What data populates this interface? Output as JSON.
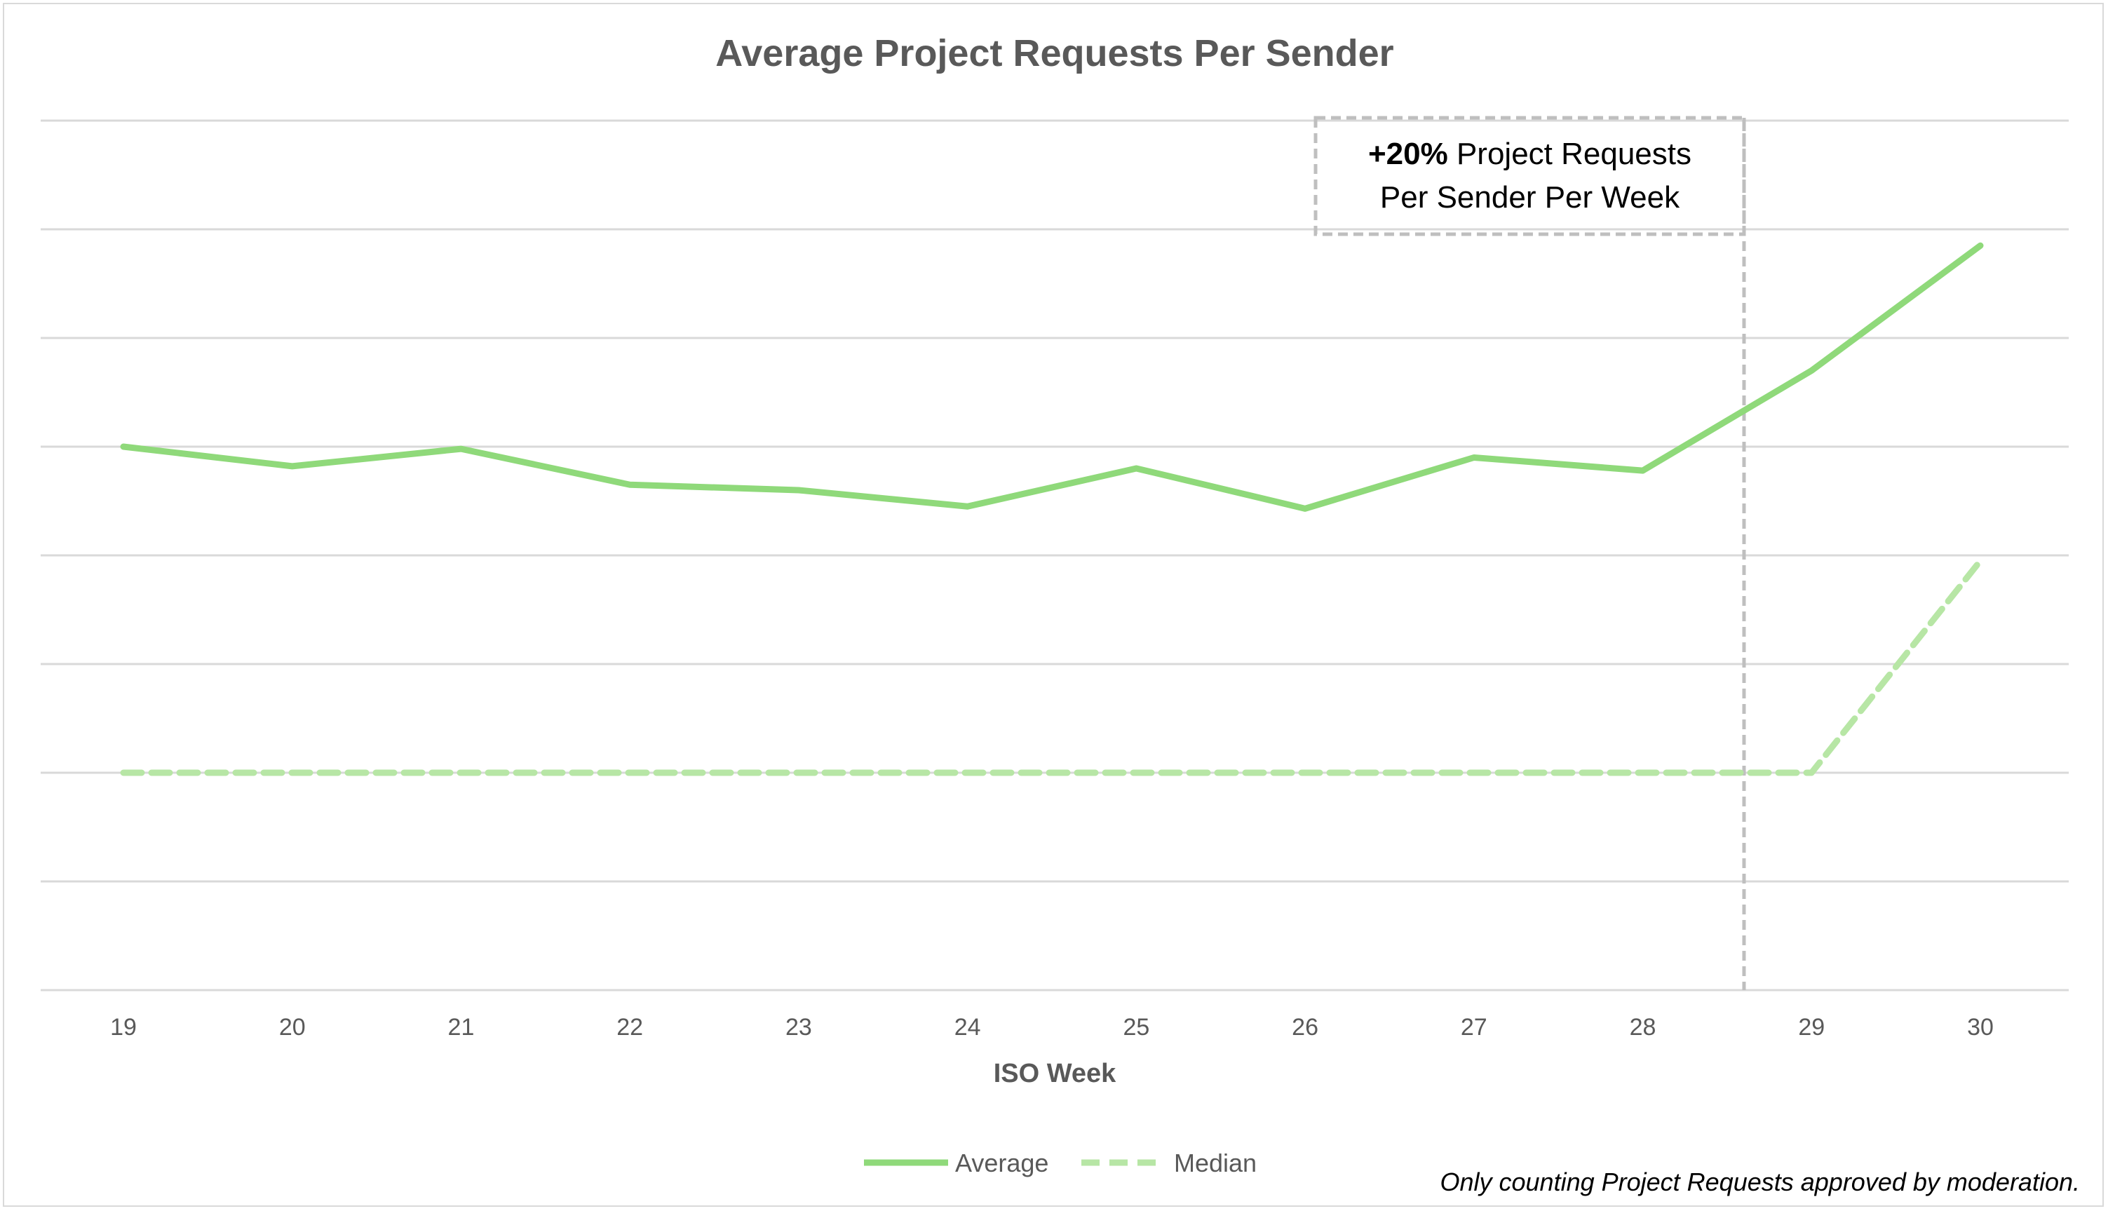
{
  "chart_data": {
    "type": "line",
    "title": "Average Project Requests Per Sender",
    "xlabel": "ISO Week",
    "ylabel": "",
    "categories": [
      "19",
      "20",
      "21",
      "22",
      "23",
      "24",
      "25",
      "26",
      "27",
      "28",
      "29",
      "30"
    ],
    "series": [
      {
        "name": "Average",
        "style": "solid",
        "color": "#8fd97a",
        "values": [
          5.0,
          4.82,
          4.98,
          4.65,
          4.6,
          4.45,
          4.8,
          4.43,
          4.9,
          4.78,
          5.7,
          6.85
        ]
      },
      {
        "name": "Median",
        "style": "dashed",
        "color": "#b7e6a5",
        "values": [
          2.0,
          2.0,
          2.0,
          2.0,
          2.0,
          2.0,
          2.0,
          2.0,
          2.0,
          2.0,
          2.0,
          3.95
        ]
      }
    ],
    "ylim": [
      0,
      8
    ],
    "grid": true,
    "y_tick_labels_shown": false,
    "legend_position": "bottom",
    "annotation": {
      "bold": "+20%",
      "line1_rest": " Project Requests",
      "line2": "Per Sender Per Week",
      "marker_x": 28.6
    },
    "footnote": "Only counting Project Requests approved by moderation."
  }
}
